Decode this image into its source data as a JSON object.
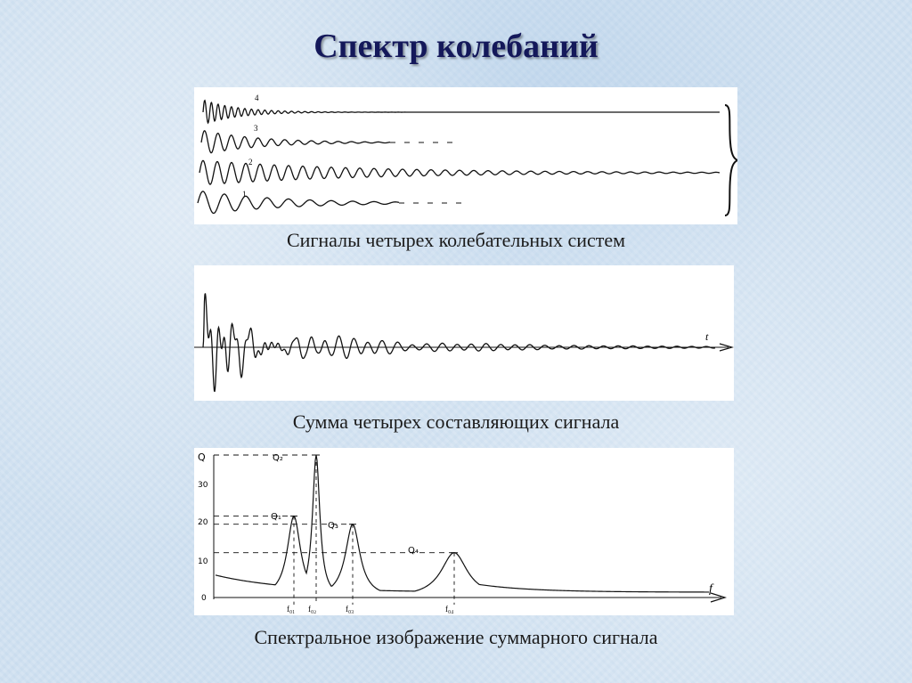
{
  "slide": {
    "title": "Спектр колебаний"
  },
  "figure1": {
    "caption": "Сигналы четырех колебательных систем",
    "curve_labels": [
      "4",
      "3",
      "2",
      "1"
    ]
  },
  "figure2": {
    "caption": "Сумма четырех составляющих сигнала",
    "axis_label": "t"
  },
  "figure3": {
    "caption": "Спектральное изображение суммарного сигнала",
    "y_axis_label": "Q",
    "y_ticks": [
      "0",
      "10",
      "20",
      "30"
    ],
    "peak_labels": [
      "Q₁",
      "Q₂",
      "Q₃",
      "Q₄"
    ],
    "freq_labels": [
      "f₀₁",
      "f₀₂",
      "f₀₃",
      "f₀₄"
    ],
    "x_axis_label": "f"
  },
  "chart_data": {
    "type": "line",
    "xlabel": "f",
    "ylabel": "Q",
    "ylim": [
      0,
      35
    ],
    "peaks": [
      {
        "label": "Q₁",
        "freq_label": "f₀₁",
        "y": 20
      },
      {
        "label": "Q₂",
        "freq_label": "f₀₂",
        "y": 35
      },
      {
        "label": "Q₃",
        "freq_label": "f₀₃",
        "y": 18
      },
      {
        "label": "Q₄",
        "freq_label": "f₀₄",
        "y": 11
      }
    ]
  },
  "colors": {
    "ink": "#111111",
    "title": "#14185a"
  }
}
